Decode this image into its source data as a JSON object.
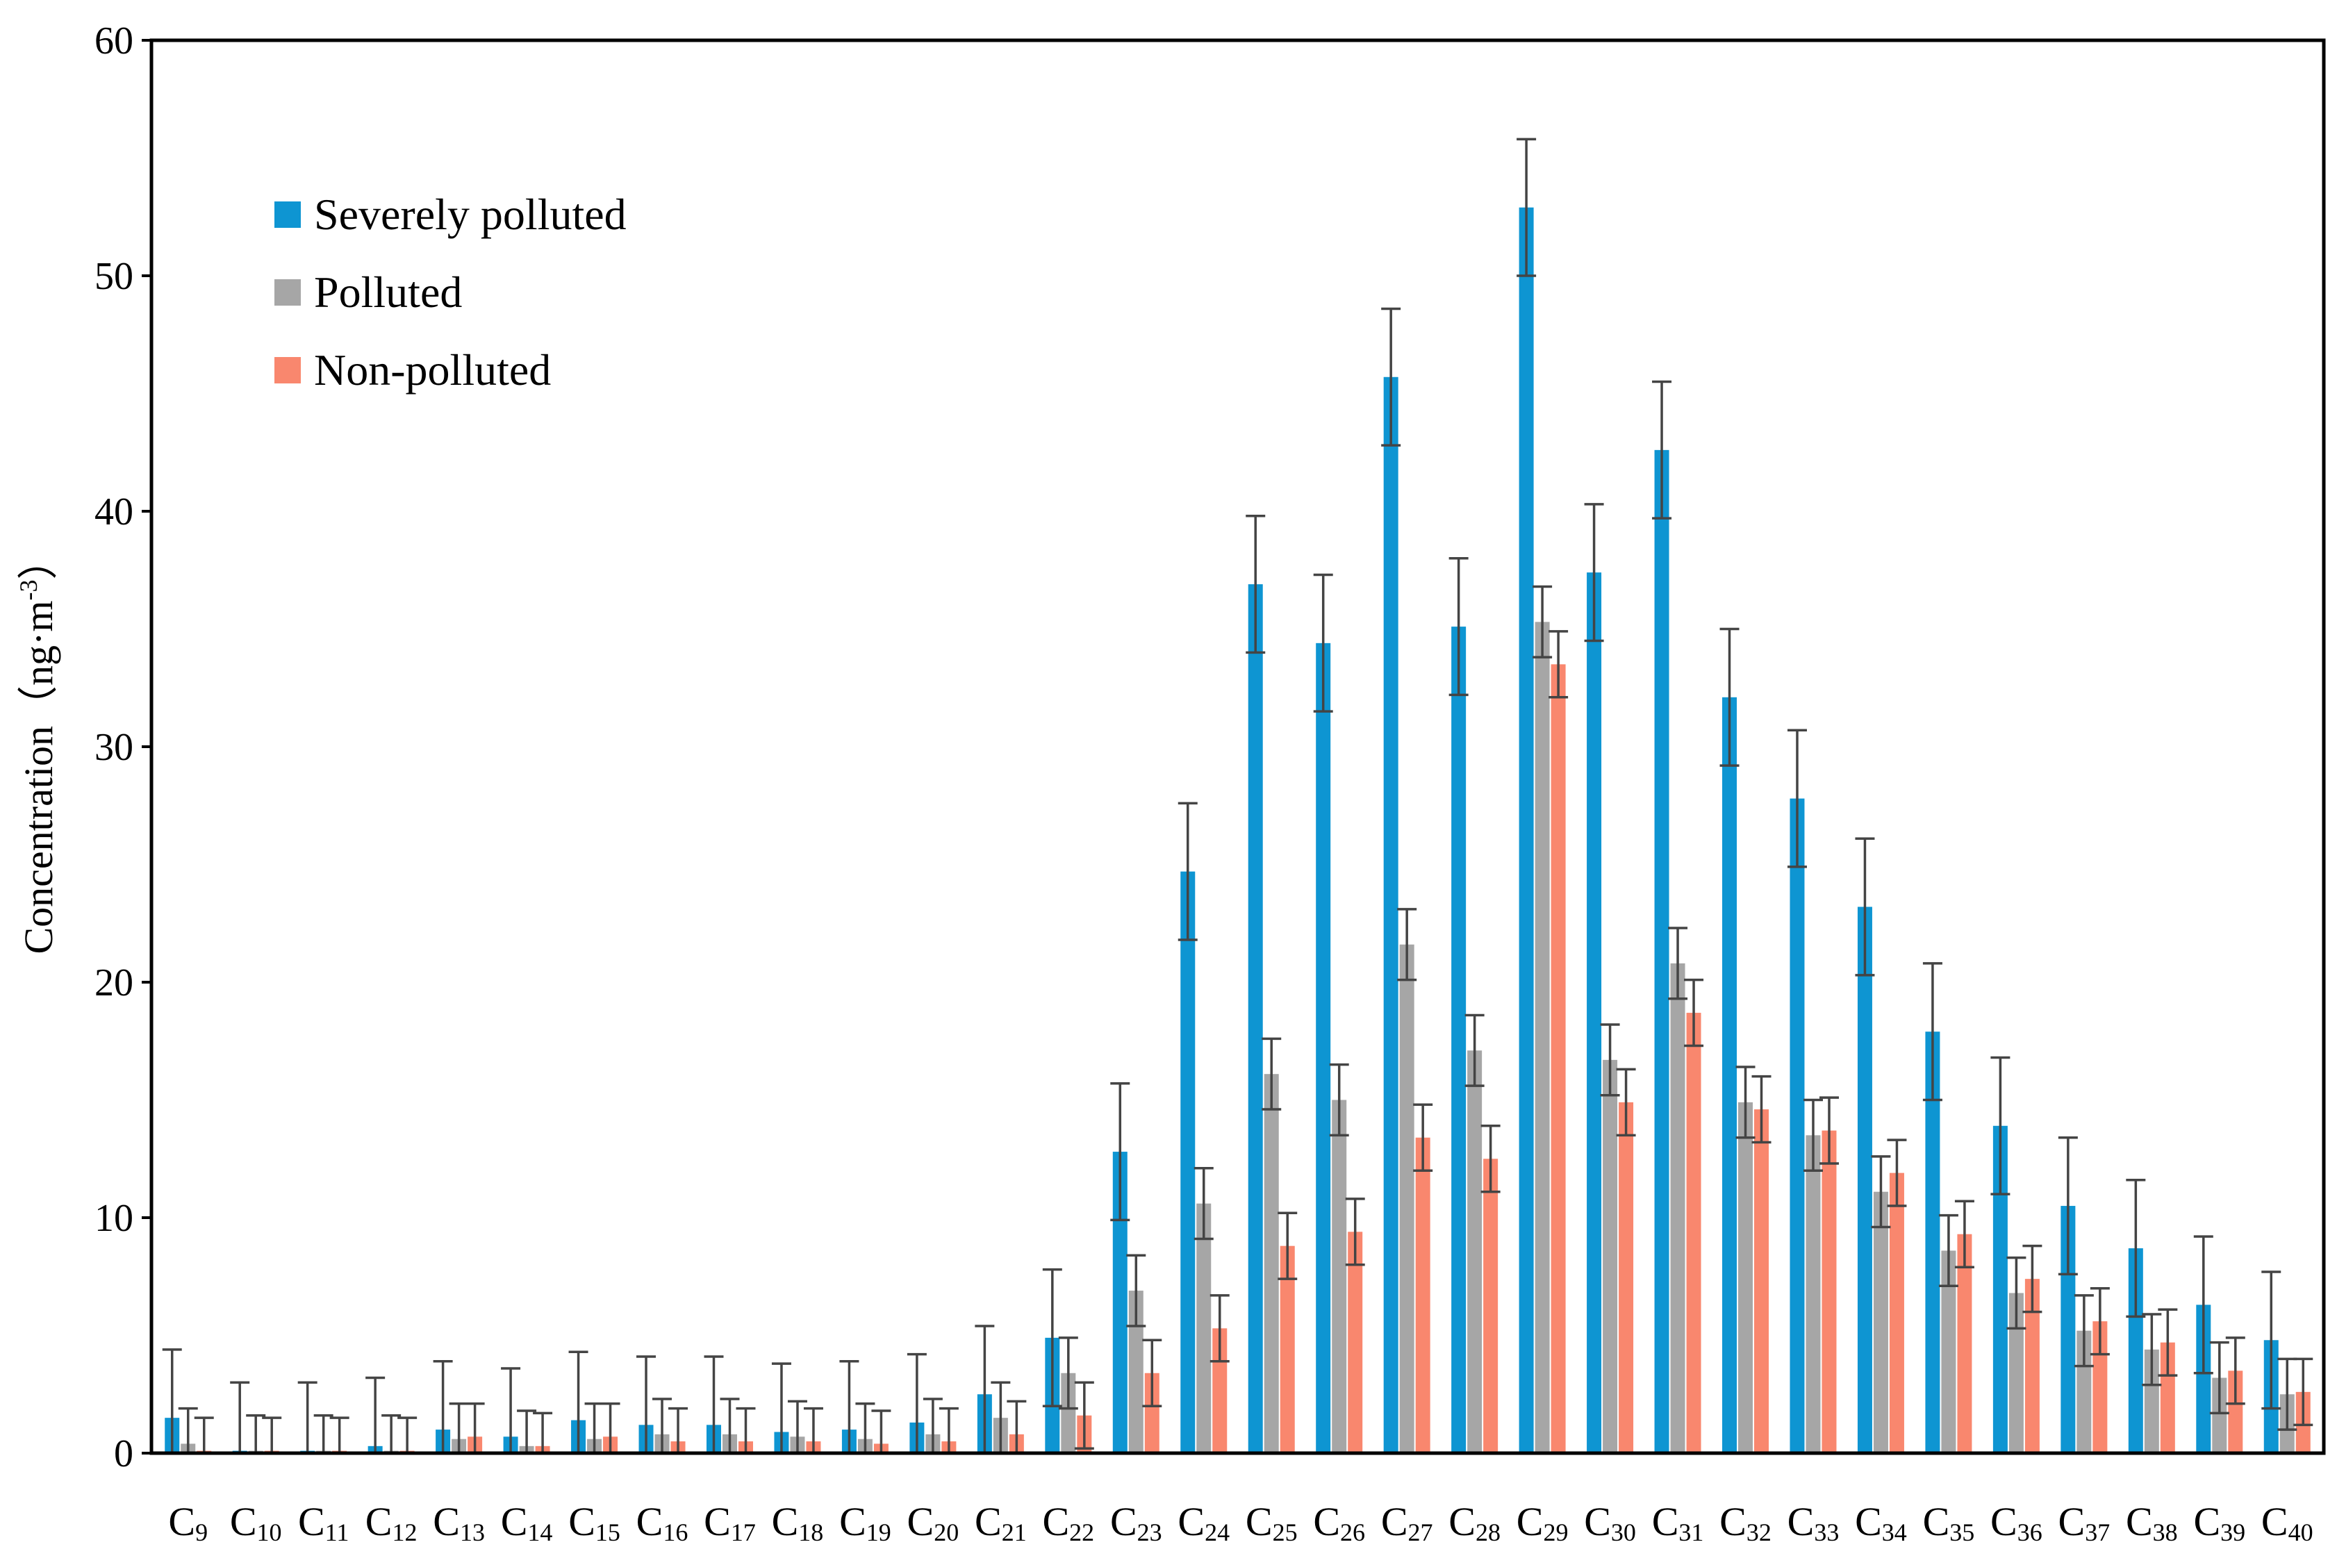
{
  "chart_data": {
    "type": "bar",
    "title": "",
    "xlabel": "",
    "ylabel": "Concentration（ng·m",
    "ylabel_superscript": "-3",
    "ylabel_close": "）",
    "ylim": [
      0,
      60
    ],
    "yticks": [
      0,
      10,
      20,
      30,
      40,
      50,
      60
    ],
    "grid": false,
    "legend_position": "top-left",
    "error_bars": true,
    "categories": [
      {
        "main": "C",
        "sub": "9"
      },
      {
        "main": "C",
        "sub": "10"
      },
      {
        "main": "C",
        "sub": "11"
      },
      {
        "main": "C",
        "sub": "12"
      },
      {
        "main": "C",
        "sub": "13"
      },
      {
        "main": "C",
        "sub": "14"
      },
      {
        "main": "C",
        "sub": "15"
      },
      {
        "main": "C",
        "sub": "16"
      },
      {
        "main": "C",
        "sub": "17"
      },
      {
        "main": "C",
        "sub": "18"
      },
      {
        "main": "C",
        "sub": "19"
      },
      {
        "main": "C",
        "sub": "20"
      },
      {
        "main": "C",
        "sub": "21"
      },
      {
        "main": "C",
        "sub": "22"
      },
      {
        "main": "C",
        "sub": "23"
      },
      {
        "main": "C",
        "sub": "24"
      },
      {
        "main": "C",
        "sub": "25"
      },
      {
        "main": "C",
        "sub": "26"
      },
      {
        "main": "C",
        "sub": "27"
      },
      {
        "main": "C",
        "sub": "28"
      },
      {
        "main": "C",
        "sub": "29"
      },
      {
        "main": "C",
        "sub": "30"
      },
      {
        "main": "C",
        "sub": "31"
      },
      {
        "main": "C",
        "sub": "32"
      },
      {
        "main": "C",
        "sub": "33"
      },
      {
        "main": "C",
        "sub": "34"
      },
      {
        "main": "C",
        "sub": "35"
      },
      {
        "main": "C",
        "sub": "36"
      },
      {
        "main": "C",
        "sub": "37"
      },
      {
        "main": "C",
        "sub": "38"
      },
      {
        "main": "C",
        "sub": "39"
      },
      {
        "main": "C",
        "sub": "40"
      }
    ],
    "series": [
      {
        "name": "Severely polluted",
        "color": "#0e95d2",
        "values": [
          1.5,
          0.1,
          0.1,
          0.3,
          1.0,
          0.7,
          1.4,
          1.2,
          1.2,
          0.9,
          1.0,
          1.3,
          2.5,
          4.9,
          12.8,
          24.7,
          36.9,
          34.4,
          45.7,
          35.1,
          52.9,
          37.4,
          42.6,
          32.1,
          27.8,
          23.2,
          17.9,
          13.9,
          10.5,
          8.7,
          6.3,
          4.8
        ],
        "errors": [
          2.9,
          2.9,
          2.9,
          2.9,
          2.9,
          2.9,
          2.9,
          2.9,
          2.9,
          2.9,
          2.9,
          2.9,
          2.9,
          2.9,
          2.9,
          2.9,
          2.9,
          2.9,
          2.9,
          2.9,
          2.9,
          2.9,
          2.9,
          2.9,
          2.9,
          2.9,
          2.9,
          2.9,
          2.9,
          2.9,
          2.9,
          2.9
        ]
      },
      {
        "name": "Polluted",
        "color": "#a6a6a6",
        "values": [
          0.4,
          0.1,
          0.1,
          0.1,
          0.6,
          0.3,
          0.6,
          0.8,
          0.8,
          0.7,
          0.6,
          0.8,
          1.5,
          3.4,
          6.9,
          10.6,
          16.1,
          15.0,
          21.6,
          17.1,
          35.3,
          16.7,
          20.8,
          14.9,
          13.5,
          11.1,
          8.6,
          6.8,
          5.2,
          4.4,
          3.2,
          2.5
        ],
        "errors": [
          1.5,
          1.5,
          1.5,
          1.5,
          1.5,
          1.5,
          1.5,
          1.5,
          1.5,
          1.5,
          1.5,
          1.5,
          1.5,
          1.5,
          1.5,
          1.5,
          1.5,
          1.5,
          1.5,
          1.5,
          1.5,
          1.5,
          1.5,
          1.5,
          1.5,
          1.5,
          1.5,
          1.5,
          1.5,
          1.5,
          1.5,
          1.5
        ]
      },
      {
        "name": "Non-polluted",
        "color": "#f9876e",
        "values": [
          0.1,
          0.1,
          0.1,
          0.1,
          0.7,
          0.3,
          0.7,
          0.5,
          0.5,
          0.5,
          0.4,
          0.5,
          0.8,
          1.6,
          3.4,
          5.3,
          8.8,
          9.4,
          13.4,
          12.5,
          33.5,
          14.9,
          18.7,
          14.6,
          13.7,
          11.9,
          9.3,
          7.4,
          5.6,
          4.7,
          3.5,
          2.6
        ],
        "errors": [
          1.4,
          1.4,
          1.4,
          1.4,
          1.4,
          1.4,
          1.4,
          1.4,
          1.4,
          1.4,
          1.4,
          1.4,
          1.4,
          1.4,
          1.4,
          1.4,
          1.4,
          1.4,
          1.4,
          1.4,
          1.4,
          1.4,
          1.4,
          1.4,
          1.4,
          1.4,
          1.4,
          1.4,
          1.4,
          1.4,
          1.4,
          1.4
        ]
      }
    ]
  }
}
